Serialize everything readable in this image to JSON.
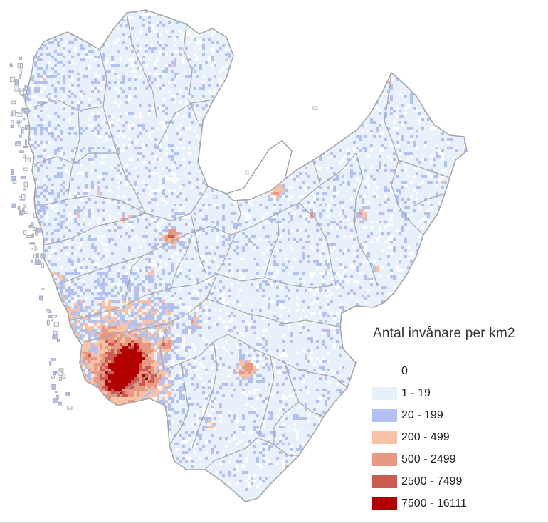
{
  "legend": {
    "title": "Antal invånare per km2",
    "classes": [
      {
        "label": "0",
        "color": "#ffffff"
      },
      {
        "label": "1 - 19",
        "color": "#e8f0fc"
      },
      {
        "label": "20 - 199",
        "color": "#b3c0f2"
      },
      {
        "label": "200 - 499",
        "color": "#f7c2a6"
      },
      {
        "label": "500 - 2499",
        "color": "#e69a84"
      },
      {
        "label": "2500 - 7499",
        "color": "#cc5a50"
      },
      {
        "label": "7500 - 16111",
        "color": "#b00000"
      }
    ]
  },
  "map": {
    "border_color": "#a6a6a6",
    "water_color": "#ffffff"
  }
}
